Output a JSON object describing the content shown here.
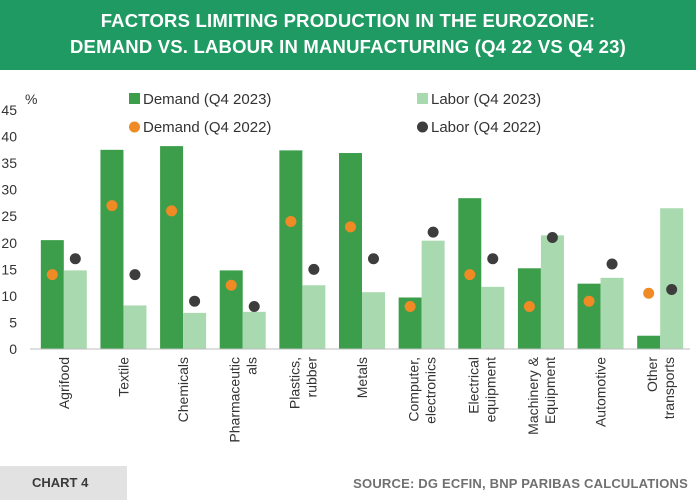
{
  "header": {
    "title_line1": "FACTORS LIMITING PRODUCTION IN THE EUROZONE:",
    "title_line2": "DEMAND VS. LABOUR IN MANUFACTURING (Q4 22 VS Q4 23)"
  },
  "footer": {
    "chart_label": "CHART 4",
    "source": "SOURCE: DG ECFIN, BNP PARIBAS CALCULATIONS"
  },
  "colors": {
    "header_bg": "#1f9a62",
    "demand_2023": "#3c9e4a",
    "labor_2023": "#a9d9ae",
    "demand_2022": "#f08a24",
    "labor_2022": "#3d3d3d"
  },
  "chart_data": {
    "type": "bar",
    "unit_label": "%",
    "ylim": [
      0,
      45
    ],
    "yticks": [
      0,
      5,
      10,
      15,
      20,
      25,
      30,
      35,
      40,
      45
    ],
    "categories": [
      [
        "Agrifood"
      ],
      [
        "Textile"
      ],
      [
        "Chemicals"
      ],
      [
        "Pharmaceutic",
        "als"
      ],
      [
        "Plastics,",
        "rubber"
      ],
      [
        "Metals"
      ],
      [
        "Computer,",
        "electronics"
      ],
      [
        "Electrical",
        "equipment"
      ],
      [
        "Machinery &",
        "Equipment"
      ],
      [
        "Automotive"
      ],
      [
        "Other",
        "transports"
      ]
    ],
    "series": [
      {
        "name": "Demand (Q4 2023)",
        "kind": "bar",
        "values": [
          20.5,
          37.5,
          38.2,
          14.8,
          37.4,
          36.9,
          9.7,
          28.4,
          15.2,
          12.3,
          2.5
        ]
      },
      {
        "name": "Labor (Q4 2023)",
        "kind": "bar",
        "values": [
          14.8,
          8.2,
          6.8,
          7.0,
          12.0,
          10.7,
          20.4,
          11.7,
          21.4,
          13.4,
          26.5
        ]
      },
      {
        "name": "Demand (Q4 2022)",
        "kind": "dot",
        "values": [
          14.0,
          27.0,
          26.0,
          12.0,
          24.0,
          23.0,
          8.0,
          14.0,
          8.0,
          9.0,
          10.5
        ]
      },
      {
        "name": "Labor (Q4 2022)",
        "kind": "dot",
        "values": [
          17.0,
          14.0,
          9.0,
          8.0,
          15.0,
          17.0,
          22.0,
          17.0,
          21.0,
          16.0,
          11.2
        ]
      }
    ]
  }
}
